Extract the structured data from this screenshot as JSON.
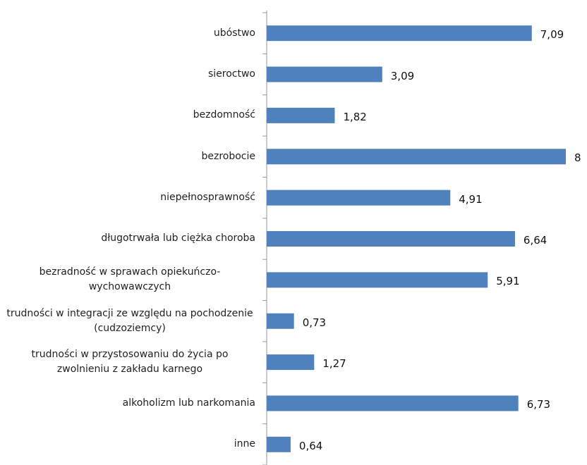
{
  "chart_data": {
    "type": "bar",
    "orientation": "horizontal",
    "categories": [
      "ubóstwo",
      "sieroctwo",
      "bezdomność",
      "bezrobocie",
      "niepełnosprawność",
      "długotrwała lub ciężka choroba",
      "bezradność w sprawach opiekuńczo-wychowawczych",
      "trudności w integracji ze względu na pochodzenie (cudzoziemcy)",
      "trudności w przystosowaniu do życia po zwolnieniu z zakładu karnego",
      "alkoholizm lub narkomania",
      "inne"
    ],
    "values": [
      7.09,
      3.09,
      1.82,
      8,
      4.91,
      6.64,
      5.91,
      0.73,
      1.27,
      6.73,
      0.64
    ],
    "value_labels": [
      "7,09",
      "3,09",
      "1,82",
      "8",
      "4,91",
      "6,64",
      "5,91",
      "0,73",
      "1,27",
      "6,73",
      "0,64"
    ],
    "color": "#4f81bd",
    "xlim": [
      0,
      8
    ]
  }
}
